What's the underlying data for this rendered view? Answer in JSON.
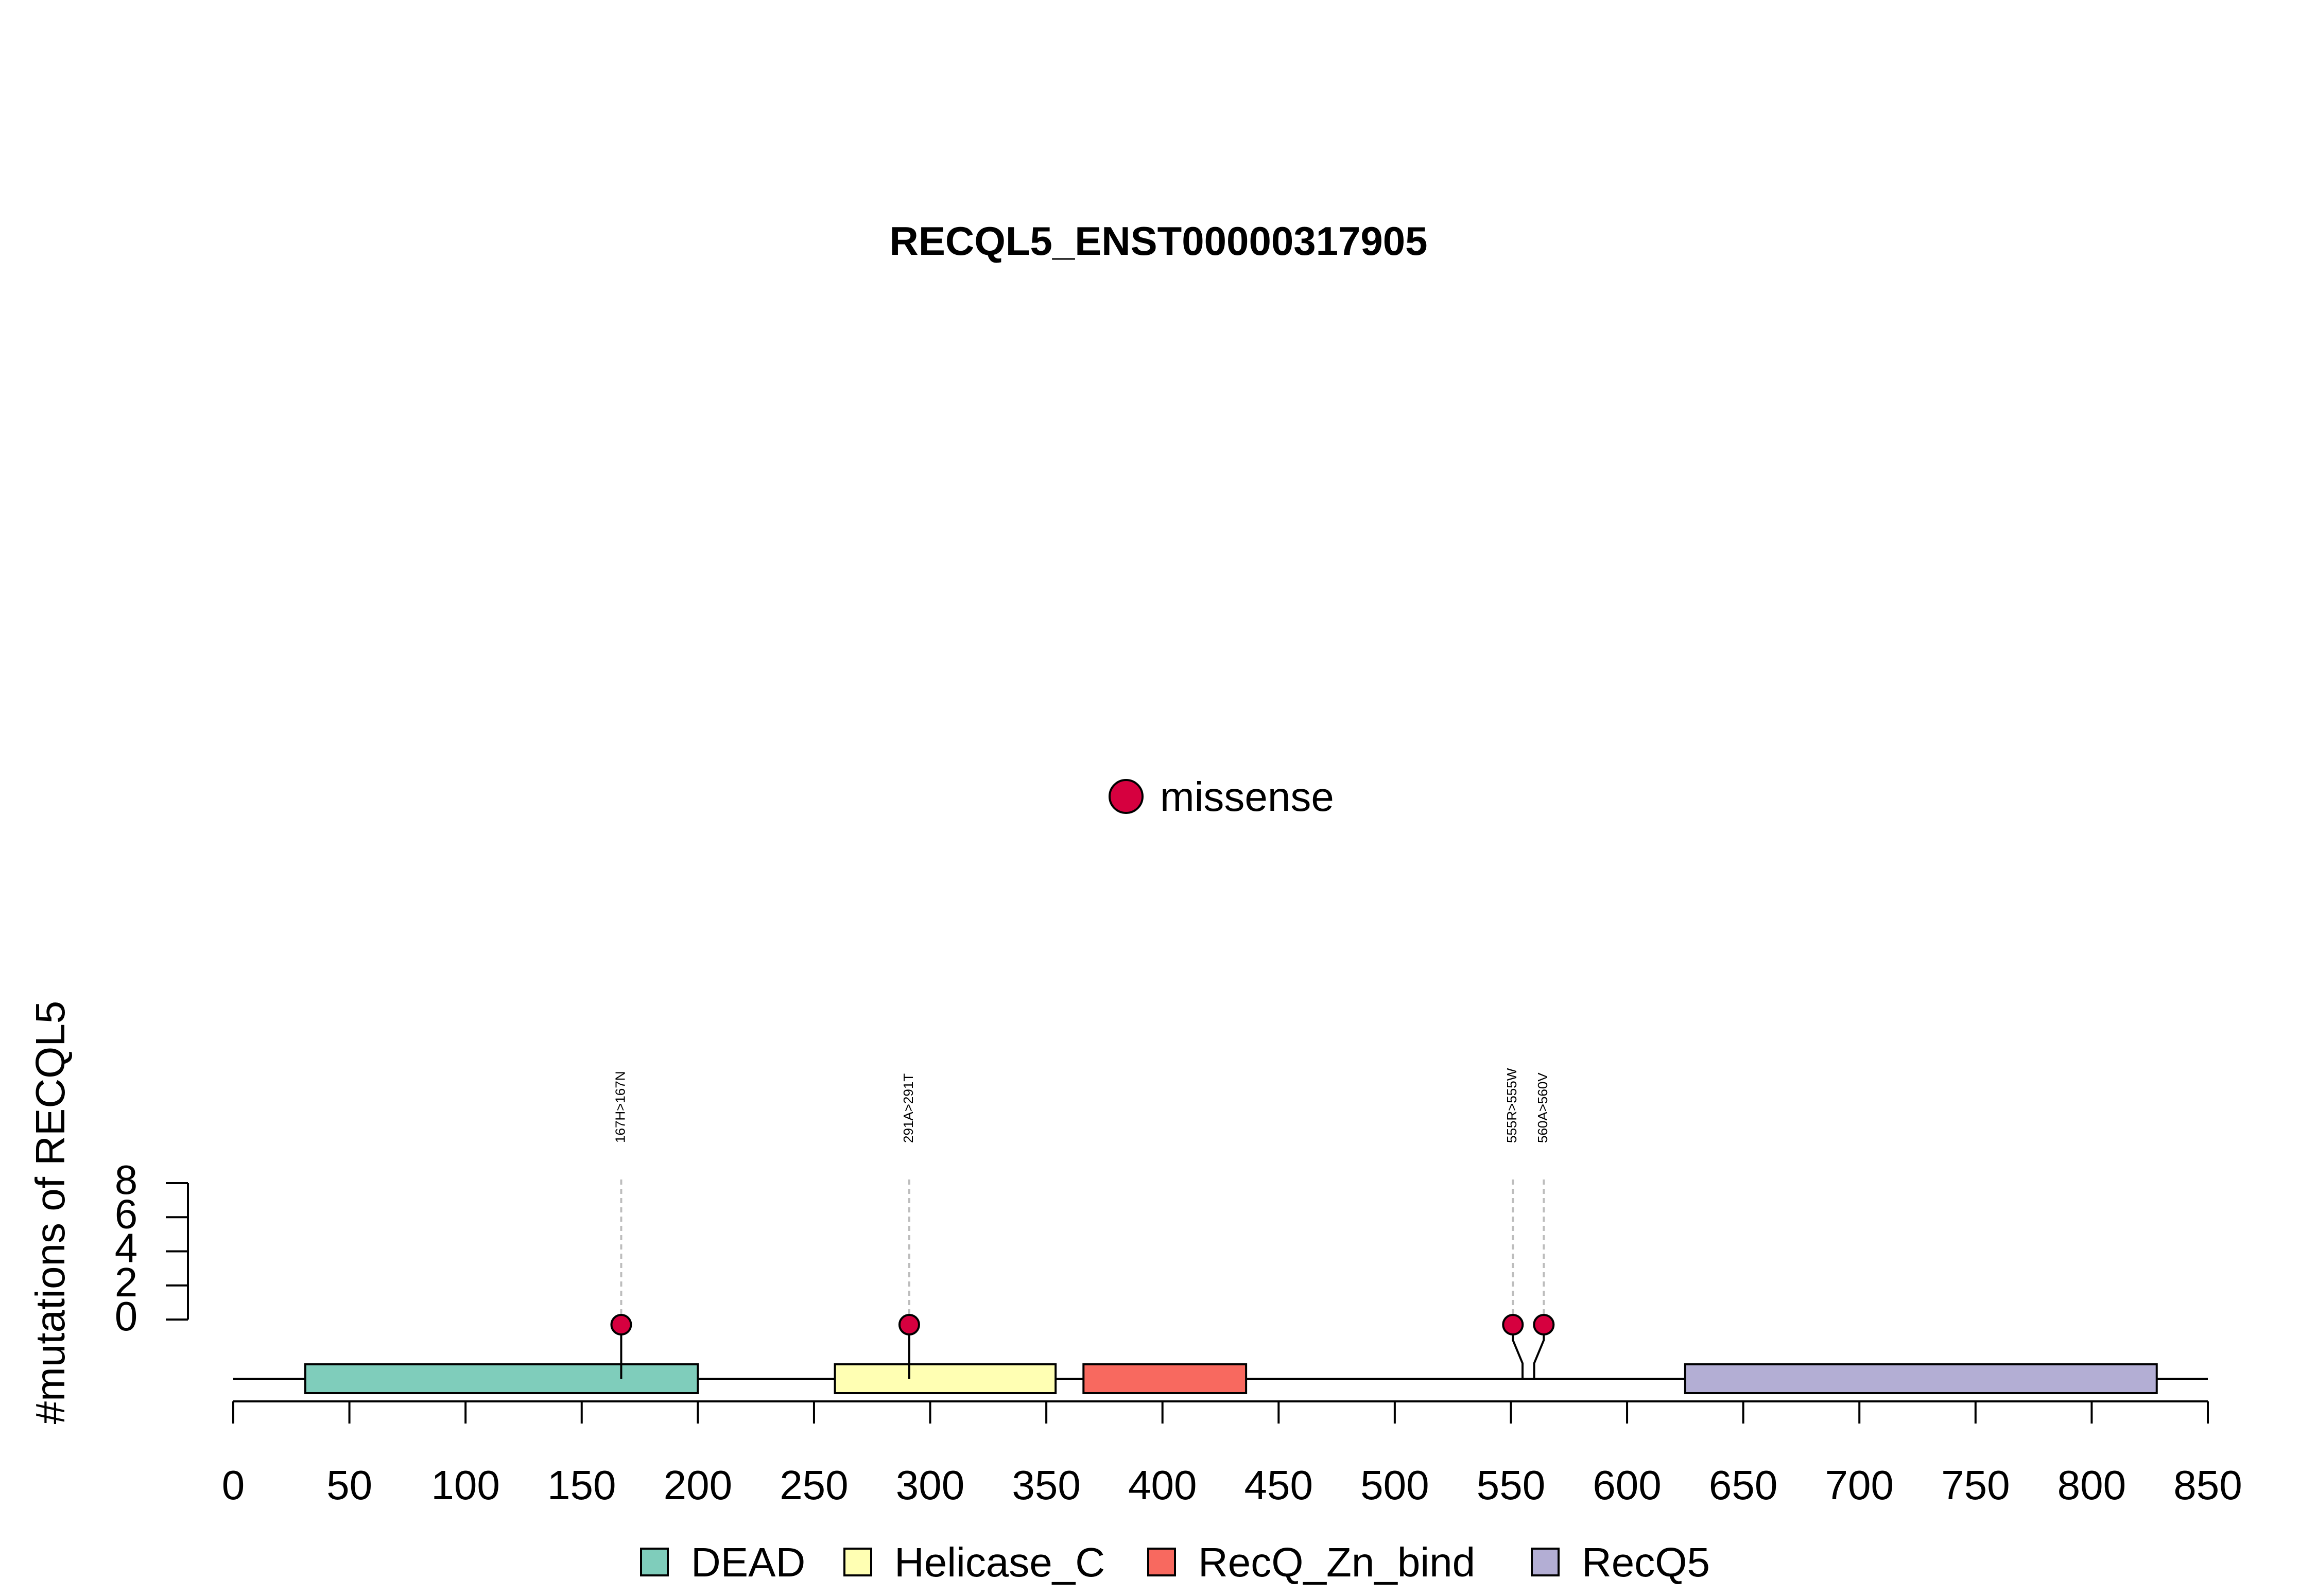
{
  "chart_data": {
    "type": "lollipop",
    "title": "RECQL5_ENST00000317905",
    "ylabel": "#mutations of RECQL5",
    "xlim": [
      0,
      850
    ],
    "x_ticks": [
      0,
      50,
      100,
      150,
      200,
      250,
      300,
      350,
      400,
      450,
      500,
      550,
      600,
      650,
      700,
      750,
      800,
      850
    ],
    "y_ticks": [
      0,
      2,
      4,
      6,
      8
    ],
    "ylim": [
      0,
      8
    ],
    "protein_length": 850,
    "mutation_legend": [
      {
        "label": "missense",
        "color": "#D6003F"
      }
    ],
    "mutations": [
      {
        "position": 167,
        "label": "167H>167N",
        "count": 1,
        "type": "missense"
      },
      {
        "position": 291,
        "label": "291A>291T",
        "count": 1,
        "type": "missense"
      },
      {
        "position": 555,
        "label": "555R>555W",
        "count": 1,
        "type": "missense"
      },
      {
        "position": 560,
        "label": "560A>560V",
        "count": 1,
        "type": "missense"
      }
    ],
    "domains": [
      {
        "name": "DEAD",
        "start": 31,
        "end": 200,
        "color": "#7FCDBB"
      },
      {
        "name": "Helicase_C",
        "start": 259,
        "end": 354,
        "color": "#FFFFB3"
      },
      {
        "name": "RecQ_Zn_bind",
        "start": 366,
        "end": 436,
        "color": "#F8695F"
      },
      {
        "name": "RecQ5",
        "start": 625,
        "end": 828,
        "color": "#B3AED4"
      }
    ],
    "legend_placement": "bottom",
    "grid": false
  }
}
